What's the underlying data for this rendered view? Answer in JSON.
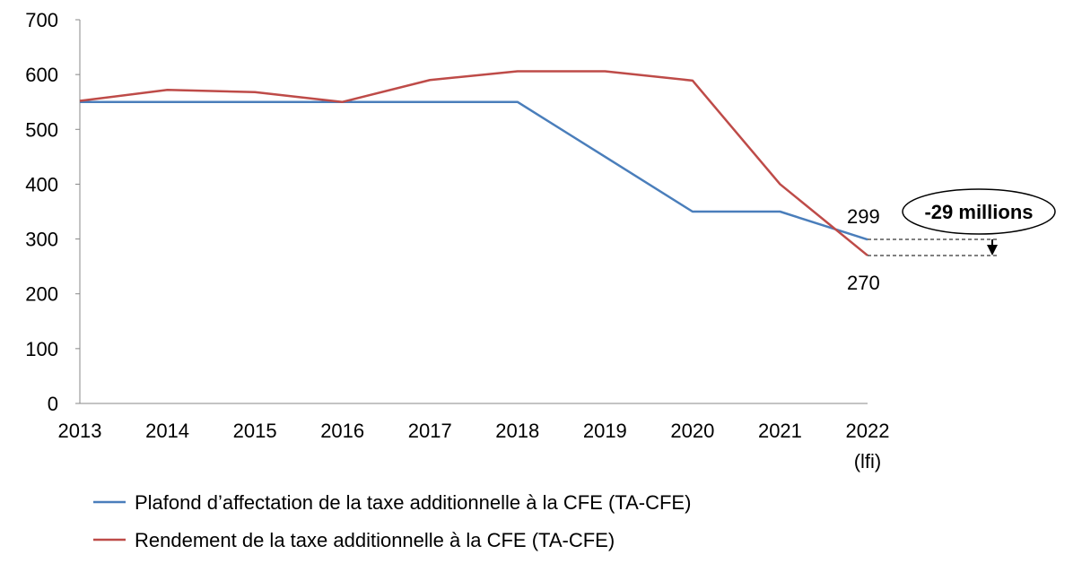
{
  "chart_data": {
    "type": "line",
    "categories": [
      "2013",
      "2014",
      "2015",
      "2016",
      "2017",
      "2018",
      "2019",
      "2020",
      "2021",
      "2022"
    ],
    "category_sublabels": [
      "",
      "",
      "",
      "",
      "",
      "",
      "",
      "",
      "",
      "(lfi)"
    ],
    "ylim": [
      0,
      700
    ],
    "yticks": [
      0,
      100,
      200,
      300,
      400,
      500,
      600,
      700
    ],
    "grid": false,
    "legend_position": "bottom",
    "series": [
      {
        "name": "Plafond d’affectation de la taxe additionnelle à la CFE (TA-CFE)",
        "color": "#4a7ebb",
        "values": [
          550,
          550,
          550,
          550,
          550,
          550,
          450,
          350,
          350,
          299
        ]
      },
      {
        "name": "Rendement  de la taxe additionnelle à la CFE (TA-CFE)",
        "color": "#be4b48",
        "values": [
          552,
          572,
          568,
          550,
          590,
          606,
          606,
          589,
          400,
          270
        ]
      }
    ],
    "data_labels": {
      "blue_last": "299",
      "red_last": "270"
    },
    "annotation": "-29 millions"
  }
}
